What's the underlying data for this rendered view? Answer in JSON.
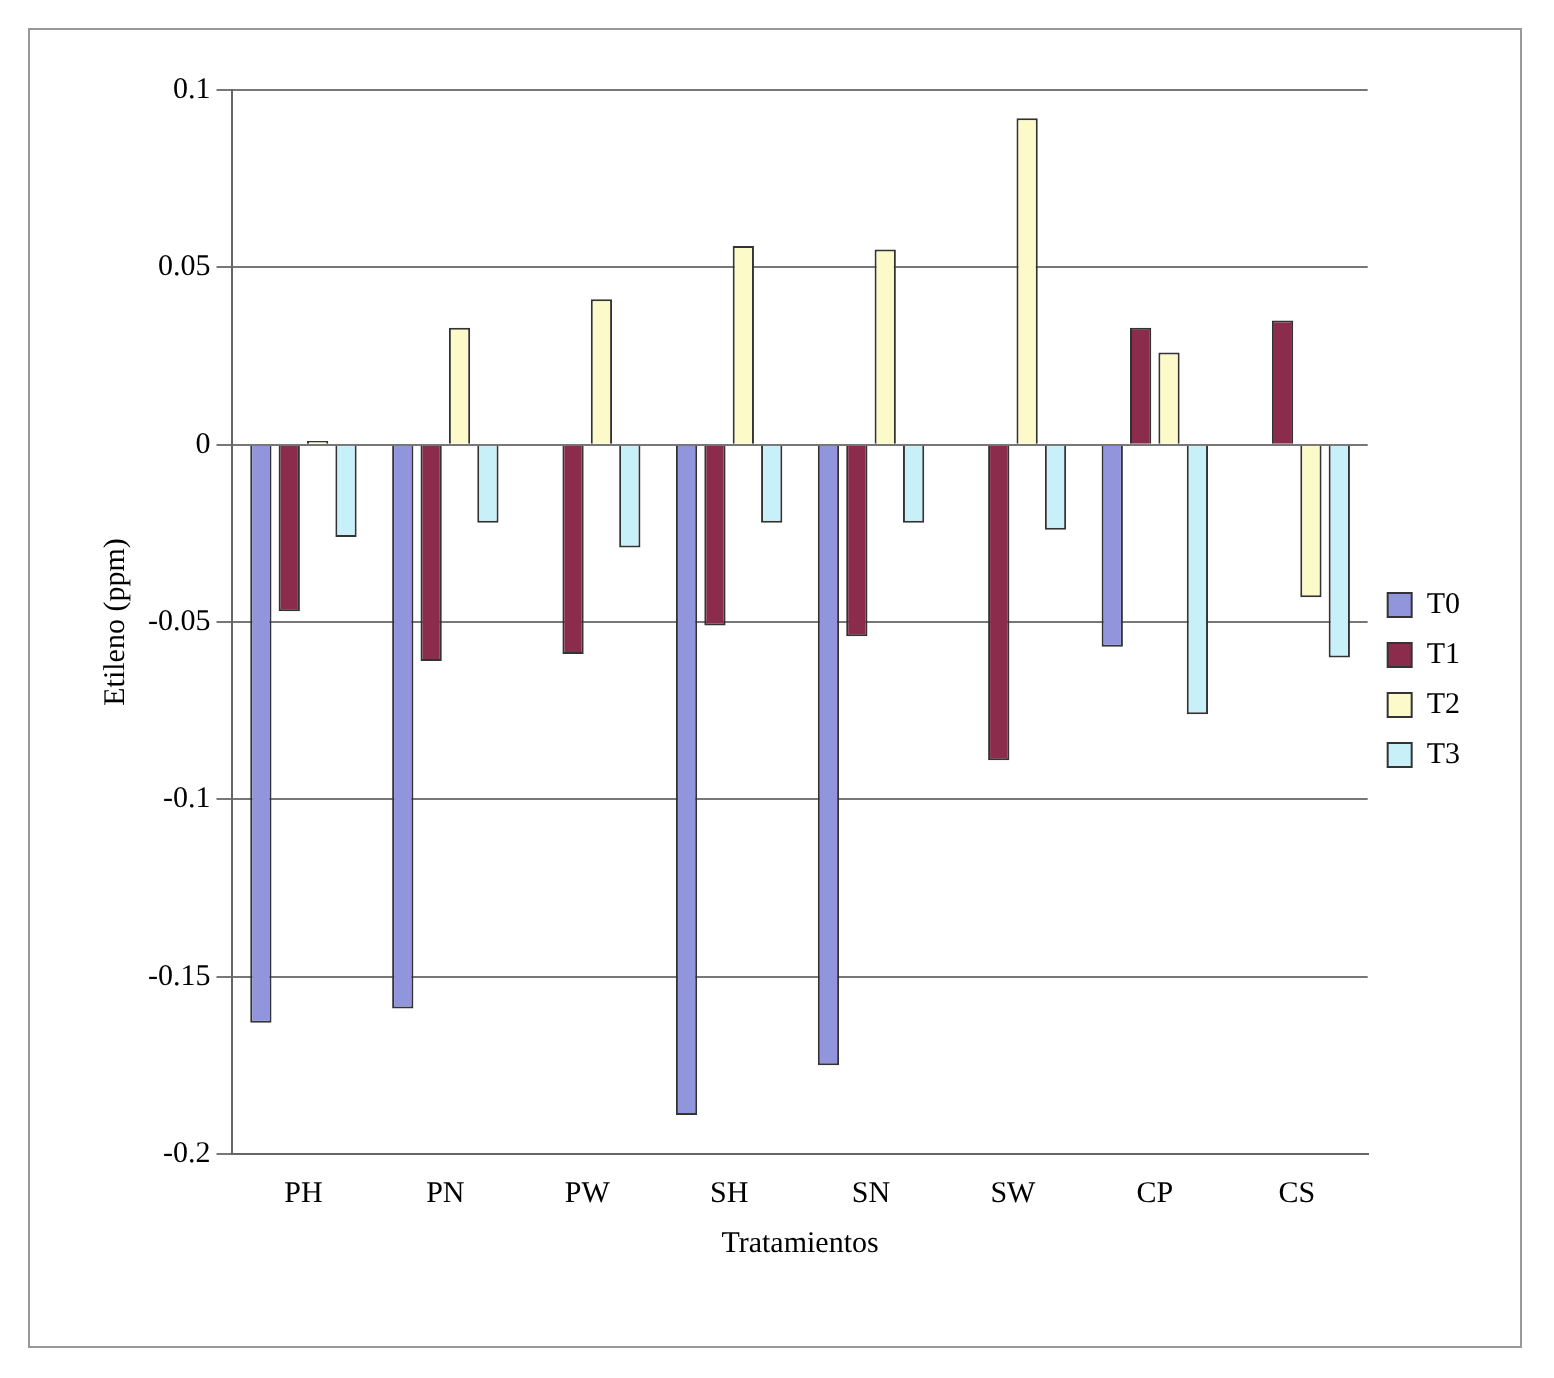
{
  "chart_data": {
    "type": "bar",
    "xlabel": "Tratamientos",
    "ylabel": "Etileno (ppm)",
    "categories": [
      "PH",
      "PN",
      "PW",
      "SH",
      "SN",
      "SW",
      "CP",
      "CS"
    ],
    "series": [
      {
        "name": "T0",
        "color": "#9095dc",
        "values": [
          -0.163,
          -0.159,
          0,
          -0.189,
          -0.175,
          0,
          -0.057,
          0
        ]
      },
      {
        "name": "T1",
        "color": "#8c2c4c",
        "values": [
          -0.047,
          -0.061,
          -0.059,
          -0.051,
          -0.054,
          -0.089,
          0.033,
          0.035
        ]
      },
      {
        "name": "T2",
        "color": "#fcfac8",
        "values": [
          0.001,
          0.033,
          0.041,
          0.056,
          0.055,
          0.092,
          0.026,
          -0.043
        ]
      },
      {
        "name": "T3",
        "color": "#c8f0f8",
        "values": [
          -0.026,
          -0.022,
          -0.029,
          -0.022,
          -0.022,
          -0.024,
          -0.076,
          -0.06
        ]
      }
    ],
    "ylim": [
      -0.2,
      0.1
    ],
    "yticks": [
      -0.2,
      -0.15,
      -0.1,
      -0.05,
      0,
      0.05,
      0.1
    ],
    "grid": "y",
    "legend": "right"
  }
}
